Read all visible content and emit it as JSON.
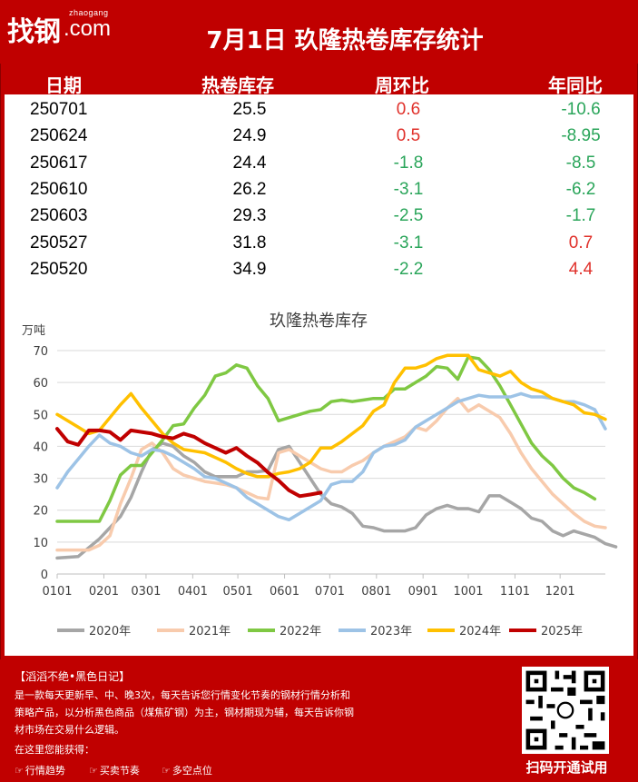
{
  "header": {
    "logo_cn": "找钢",
    "logo_en_small": "zhaogang",
    "logo_en": ".com",
    "title": "7月1日 玖隆热卷库存统计"
  },
  "table": {
    "columns": [
      "日期",
      "热卷库存",
      "周环比",
      "年同比"
    ],
    "rows": [
      {
        "date": "250701",
        "stock": "25.5",
        "wow": "0.6",
        "yoy": "-10.6"
      },
      {
        "date": "250624",
        "stock": "24.9",
        "wow": "0.5",
        "yoy": "-8.95"
      },
      {
        "date": "250617",
        "stock": "24.4",
        "wow": "-1.8",
        "yoy": "-8.5"
      },
      {
        "date": "250610",
        "stock": "26.2",
        "wow": "-3.1",
        "yoy": "-6.2"
      },
      {
        "date": "250603",
        "stock": "29.3",
        "wow": "-2.5",
        "yoy": "-1.7"
      },
      {
        "date": "250527",
        "stock": "31.8",
        "wow": "-3.1",
        "yoy": "0.7"
      },
      {
        "date": "250520",
        "stock": "34.9",
        "wow": "-2.2",
        "yoy": "4.4"
      }
    ],
    "colors": {
      "positive": "#e0302a",
      "negative": "#2aa55a"
    }
  },
  "chart_data": {
    "type": "line",
    "title": "玖隆热卷库存",
    "ylabel": "万吨",
    "xlabel": "",
    "ylim": [
      0,
      70
    ],
    "yticks": [
      0,
      10,
      20,
      30,
      40,
      50,
      60,
      70
    ],
    "xticks": [
      "0101",
      "0201",
      "0301",
      "0401",
      "0501",
      "0601",
      "0701",
      "0801",
      "0901",
      "1001",
      "1101",
      "1201"
    ],
    "week_range": [
      0,
      52
    ],
    "grid": true,
    "legend_position": "bottom",
    "series": [
      {
        "name": "2020年",
        "color": "#a6a6a6",
        "points": [
          [
            0,
            5
          ],
          [
            2,
            5.5
          ],
          [
            4,
            11
          ],
          [
            6,
            18
          ],
          [
            7,
            24
          ],
          [
            8,
            32
          ],
          [
            9,
            39
          ],
          [
            10,
            41
          ],
          [
            11,
            40
          ],
          [
            12,
            37
          ],
          [
            13,
            35
          ],
          [
            14,
            32
          ],
          [
            15,
            30.5
          ],
          [
            16,
            30.5
          ],
          [
            17,
            30.5
          ],
          [
            18,
            32
          ],
          [
            19,
            32
          ],
          [
            20,
            32.5
          ],
          [
            21,
            39
          ],
          [
            22,
            40
          ],
          [
            23,
            35
          ],
          [
            24,
            30
          ],
          [
            25,
            25
          ],
          [
            26,
            22
          ],
          [
            27,
            21
          ],
          [
            28,
            19
          ],
          [
            29,
            15
          ],
          [
            30,
            14.5
          ],
          [
            31,
            13.5
          ],
          [
            32,
            13.5
          ],
          [
            33,
            13.5
          ],
          [
            34,
            14.5
          ],
          [
            35,
            18.5
          ],
          [
            36,
            20.5
          ],
          [
            37,
            21.5
          ],
          [
            38,
            20.5
          ],
          [
            39,
            20.5
          ],
          [
            40,
            19.5
          ],
          [
            41,
            24.5
          ],
          [
            42,
            24.5
          ],
          [
            43,
            22.5
          ],
          [
            44,
            20.5
          ],
          [
            45,
            17.5
          ],
          [
            46,
            16.5
          ],
          [
            47,
            13.5
          ],
          [
            48,
            12
          ],
          [
            49,
            13.5
          ],
          [
            50,
            12.5
          ],
          [
            51,
            11.5
          ],
          [
            52,
            9.5
          ],
          [
            53,
            8.5
          ]
        ]
      },
      {
        "name": "2021年",
        "color": "#f8cbad",
        "points": [
          [
            0,
            7.5
          ],
          [
            2,
            7.5
          ],
          [
            3,
            7.5
          ],
          [
            4,
            9
          ],
          [
            5,
            12
          ],
          [
            6,
            22
          ],
          [
            7,
            30
          ],
          [
            8,
            39
          ],
          [
            9,
            41
          ],
          [
            10,
            38
          ],
          [
            11,
            33
          ],
          [
            12,
            31
          ],
          [
            13,
            30
          ],
          [
            14,
            29
          ],
          [
            15,
            28.5
          ],
          [
            16,
            28
          ],
          [
            17,
            27
          ],
          [
            18,
            25.5
          ],
          [
            19,
            24
          ],
          [
            20,
            23.5
          ],
          [
            21,
            38
          ],
          [
            22,
            39
          ],
          [
            23,
            37
          ],
          [
            24,
            35
          ],
          [
            25,
            33
          ],
          [
            26,
            32
          ],
          [
            27,
            32
          ],
          [
            28,
            34
          ],
          [
            29,
            35.5
          ],
          [
            30,
            38
          ],
          [
            31,
            40
          ],
          [
            32,
            41.5
          ],
          [
            33,
            43
          ],
          [
            34,
            46
          ],
          [
            35,
            45
          ],
          [
            36,
            48
          ],
          [
            37,
            52
          ],
          [
            38,
            55
          ],
          [
            39,
            51
          ],
          [
            40,
            53
          ],
          [
            41,
            51
          ],
          [
            42,
            49
          ],
          [
            43,
            44
          ],
          [
            44,
            38
          ],
          [
            45,
            33
          ],
          [
            46,
            29
          ],
          [
            47,
            25
          ],
          [
            48,
            22
          ],
          [
            49,
            19
          ],
          [
            50,
            16.5
          ],
          [
            51,
            15
          ],
          [
            52,
            14.5
          ]
        ]
      },
      {
        "name": "2022年",
        "color": "#7fc843",
        "points": [
          [
            0,
            16.5
          ],
          [
            2,
            16.5
          ],
          [
            3,
            16.5
          ],
          [
            4,
            16.5
          ],
          [
            5,
            23
          ],
          [
            6,
            31
          ],
          [
            7,
            34
          ],
          [
            8,
            34
          ],
          [
            9,
            38
          ],
          [
            10,
            42
          ],
          [
            11,
            46.5
          ],
          [
            12,
            47
          ],
          [
            13,
            52
          ],
          [
            14,
            56
          ],
          [
            15,
            62
          ],
          [
            16,
            63
          ],
          [
            17,
            65.5
          ],
          [
            18,
            64.5
          ],
          [
            19,
            59
          ],
          [
            20,
            55
          ],
          [
            21,
            48
          ],
          [
            22,
            49
          ],
          [
            23,
            50
          ],
          [
            24,
            51
          ],
          [
            25,
            51.5
          ],
          [
            26,
            54
          ],
          [
            27,
            54.5
          ],
          [
            28,
            54
          ],
          [
            29,
            54.5
          ],
          [
            30,
            55
          ],
          [
            31,
            55
          ],
          [
            32,
            58
          ],
          [
            33,
            58
          ],
          [
            34,
            60
          ],
          [
            35,
            62
          ],
          [
            36,
            65
          ],
          [
            37,
            64.5
          ],
          [
            38,
            61
          ],
          [
            39,
            68
          ],
          [
            40,
            67.5
          ],
          [
            41,
            64
          ],
          [
            42,
            59
          ],
          [
            43,
            53
          ],
          [
            44,
            47
          ],
          [
            45,
            41
          ],
          [
            46,
            37
          ],
          [
            47,
            34
          ],
          [
            48,
            30
          ],
          [
            49,
            27
          ],
          [
            50,
            25.5
          ],
          [
            51,
            23.5
          ]
        ]
      },
      {
        "name": "2023年",
        "color": "#9dc3e6",
        "points": [
          [
            0,
            27
          ],
          [
            1,
            32
          ],
          [
            2,
            36
          ],
          [
            3,
            40
          ],
          [
            4,
            43.5
          ],
          [
            5,
            41
          ],
          [
            6,
            40
          ],
          [
            7,
            38
          ],
          [
            8,
            37
          ],
          [
            9,
            39
          ],
          [
            10,
            38.5
          ],
          [
            11,
            37
          ],
          [
            12,
            35
          ],
          [
            13,
            33
          ],
          [
            14,
            30.5
          ],
          [
            15,
            30
          ],
          [
            16,
            28.5
          ],
          [
            17,
            27
          ],
          [
            18,
            24
          ],
          [
            19,
            22
          ],
          [
            20,
            20
          ],
          [
            21,
            18
          ],
          [
            22,
            17
          ],
          [
            23,
            19
          ],
          [
            24,
            21
          ],
          [
            25,
            23
          ],
          [
            26,
            28
          ],
          [
            27,
            29
          ],
          [
            28,
            29
          ],
          [
            29,
            32
          ],
          [
            30,
            38
          ],
          [
            31,
            40
          ],
          [
            32,
            40.5
          ],
          [
            33,
            42
          ],
          [
            34,
            46
          ],
          [
            35,
            48
          ],
          [
            36,
            50
          ],
          [
            37,
            52
          ],
          [
            38,
            54
          ],
          [
            39,
            55
          ],
          [
            40,
            56
          ],
          [
            41,
            55.5
          ],
          [
            42,
            55.5
          ],
          [
            43,
            55.5
          ],
          [
            44,
            56.5
          ],
          [
            45,
            55.5
          ],
          [
            46,
            55.5
          ],
          [
            47,
            55
          ],
          [
            48,
            54
          ],
          [
            49,
            54
          ],
          [
            50,
            53
          ],
          [
            51,
            51.5
          ],
          [
            52,
            45.5
          ]
        ]
      },
      {
        "name": "2024年",
        "color": "#ffc000",
        "points": [
          [
            0,
            50
          ],
          [
            1,
            48
          ],
          [
            2,
            46
          ],
          [
            3,
            44
          ],
          [
            4,
            45
          ],
          [
            5,
            49
          ],
          [
            6,
            53
          ],
          [
            7,
            56.5
          ],
          [
            8,
            52
          ],
          [
            9,
            48
          ],
          [
            10,
            44
          ],
          [
            11,
            41
          ],
          [
            12,
            39
          ],
          [
            13,
            38.5
          ],
          [
            14,
            38
          ],
          [
            15,
            36.5
          ],
          [
            16,
            35
          ],
          [
            17,
            33
          ],
          [
            18,
            31.5
          ],
          [
            19,
            30.5
          ],
          [
            20,
            30.5
          ],
          [
            21,
            31.5
          ],
          [
            22,
            32
          ],
          [
            23,
            33
          ],
          [
            24,
            35
          ],
          [
            25,
            39.5
          ],
          [
            26,
            39.5
          ],
          [
            27,
            41.5
          ],
          [
            28,
            44
          ],
          [
            29,
            46.5
          ],
          [
            30,
            51
          ],
          [
            31,
            53
          ],
          [
            32,
            60
          ],
          [
            33,
            64.5
          ],
          [
            34,
            64.5
          ],
          [
            35,
            65.5
          ],
          [
            36,
            67.5
          ],
          [
            37,
            68.5
          ],
          [
            38,
            68.5
          ],
          [
            39,
            68.5
          ],
          [
            40,
            64
          ],
          [
            41,
            63
          ],
          [
            42,
            62
          ],
          [
            43,
            63.5
          ],
          [
            44,
            60
          ],
          [
            45,
            58
          ],
          [
            46,
            57
          ],
          [
            47,
            55
          ],
          [
            48,
            54
          ],
          [
            49,
            53
          ],
          [
            50,
            50.5
          ],
          [
            51,
            50
          ],
          [
            52,
            48.5
          ]
        ]
      },
      {
        "name": "2025年",
        "color": "#c00000",
        "points": [
          [
            0,
            45.5
          ],
          [
            1,
            41.5
          ],
          [
            2,
            40.5
          ],
          [
            3,
            45
          ],
          [
            4,
            45
          ],
          [
            5,
            44.5
          ],
          [
            6,
            42
          ],
          [
            7,
            45
          ],
          [
            8,
            44.5
          ],
          [
            9,
            44
          ],
          [
            10,
            43
          ],
          [
            11,
            42.5
          ],
          [
            12,
            44
          ],
          [
            13,
            43
          ],
          [
            14,
            41
          ],
          [
            15,
            39.5
          ],
          [
            16,
            38
          ],
          [
            17,
            39.5
          ],
          [
            18,
            37
          ],
          [
            19,
            34.9
          ],
          [
            20,
            31.8
          ],
          [
            21,
            29.3
          ],
          [
            22,
            26.2
          ],
          [
            23,
            24.4
          ],
          [
            24,
            24.9
          ],
          [
            25,
            25.5
          ]
        ]
      }
    ]
  },
  "footer": {
    "title": "【滔滔不绝•黑色日记】",
    "lines": [
      "是一款每天更新早、中、晚3次，每天告诉您行情变化节奏的钢材行情分析和",
      "策略产品，以分析黑色商品（煤焦矿钢）为主，钢材期现为辅，每天告诉你钢",
      "材市场在交易什么逻辑。",
      "在这里您能获得："
    ],
    "items": [
      "行情趋势",
      "买卖节奏",
      "多空点位"
    ],
    "item_icon": "hand-pointer-icon",
    "qr_caption": "扫码开通试用"
  }
}
